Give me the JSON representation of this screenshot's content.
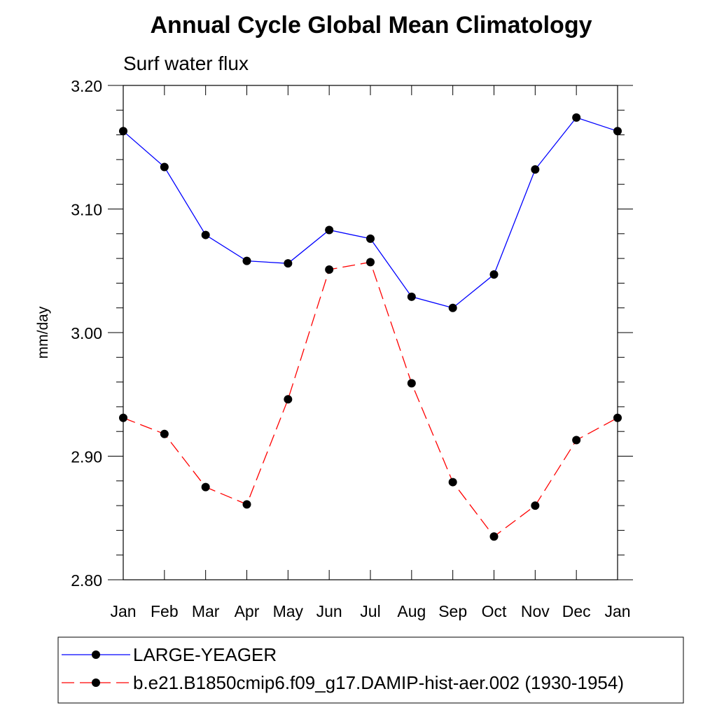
{
  "chart_data": {
    "type": "line",
    "title": "Annual Cycle Global Mean Climatology",
    "subtitle": "Surf water flux",
    "xlabel": "",
    "ylabel": "mm/day",
    "ylim": [
      2.8,
      3.2
    ],
    "yticks": [
      "2.80",
      "2.90",
      "3.00",
      "3.10",
      "3.20"
    ],
    "categories": [
      "Jan",
      "Feb",
      "Mar",
      "Apr",
      "May",
      "Jun",
      "Jul",
      "Aug",
      "Sep",
      "Oct",
      "Nov",
      "Dec",
      "Jan"
    ],
    "grid": false,
    "legend_placement": "bottom",
    "series": [
      {
        "name": "LARGE-YEAGER",
        "color": "#0000ff",
        "dashed": false,
        "values": [
          3.163,
          3.134,
          3.079,
          3.058,
          3.056,
          3.083,
          3.076,
          3.029,
          3.02,
          3.047,
          3.132,
          3.174,
          3.163
        ]
      },
      {
        "name": "b.e21.B1850cmip6.f09_g17.DAMIP-hist-aer.002 (1930-1954)",
        "color": "#ff0000",
        "dashed": true,
        "values": [
          2.931,
          2.918,
          2.875,
          2.861,
          2.946,
          3.051,
          3.057,
          2.959,
          2.879,
          2.835,
          2.86,
          2.913,
          2.931
        ]
      }
    ]
  }
}
